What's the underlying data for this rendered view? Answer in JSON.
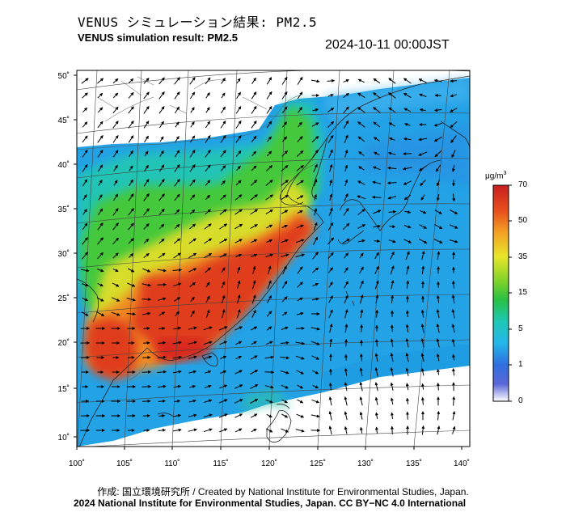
{
  "header": {
    "title_jp": "VENUS シミュレーション結果: PM2.5",
    "title_en": "VENUS simulation result: PM2.5",
    "timestamp": "2024-10-11 00:00JST"
  },
  "map": {
    "lon_ticks": [
      "100˚",
      "105˚",
      "110˚",
      "115˚",
      "120˚",
      "125˚",
      "130˚",
      "135˚",
      "140˚"
    ],
    "lat_ticks": [
      "50˚",
      "45˚",
      "40˚",
      "35˚",
      "30˚",
      "25˚",
      "20˚",
      "15˚",
      "10˚"
    ],
    "lon_range": [
      100,
      141
    ],
    "lat_range": [
      9,
      50
    ]
  },
  "colorbar": {
    "unit": "μg/m",
    "unit_sup": "3",
    "labels": [
      "70",
      "50",
      "35",
      "15",
      "5",
      "1",
      "0"
    ],
    "colors": [
      "#d42a1e",
      "#f08a22",
      "#f3e526",
      "#26c23a",
      "#1ec2c2",
      "#2266dd",
      "#ffffff"
    ]
  },
  "footer": {
    "credit": "作成: 国立環境研究所 / Created by National Institute for Environmental Studies, Japan.",
    "copyright": "2024 National Institute for Environmental Studies, Japan. CC BY−NC 4.0 International"
  }
}
